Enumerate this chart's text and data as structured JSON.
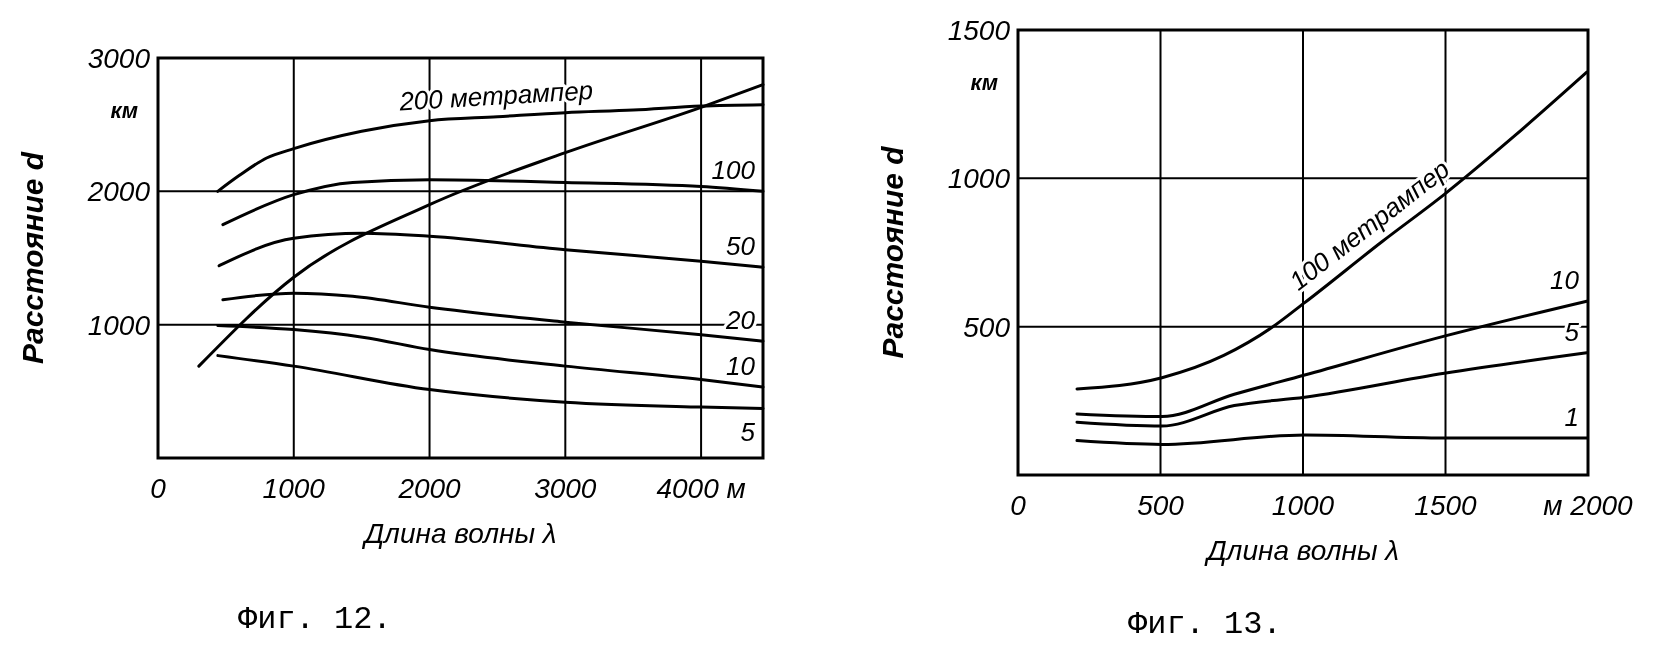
{
  "chart_data": [
    {
      "type": "line",
      "title": "Фиг. 12.",
      "xlabel": "Длина волны λ",
      "ylabel": "Расстояние d",
      "annotations": [
        "км"
      ],
      "xlim": [
        0,
        4456
      ],
      "ylim": [
        0,
        3000
      ],
      "xticks": [
        0,
        1000,
        2000,
        3000,
        {
          "value": 4000,
          "label": "4000 м"
        }
      ],
      "yticks": [
        1000,
        2000,
        3000
      ],
      "grid": true,
      "series": [
        {
          "name": "200 метрампер",
          "color": "#000000",
          "x": [
            440,
            600,
            800,
            1000,
            1500,
            2000,
            2500,
            3000,
            3500,
            4000,
            4456
          ],
          "values": [
            2000,
            2120,
            2250,
            2320,
            2450,
            2530,
            2560,
            2590,
            2610,
            2640,
            2650
          ]
        },
        {
          "color": "#000000",
          "x": [
            301,
            1000,
            2000,
            3000,
            4000,
            4456
          ],
          "values": [
            689,
            1356,
            1900,
            2290,
            2630,
            2800
          ]
        },
        {
          "name": "100",
          "color": "#000000",
          "x": [
            478,
            1000,
            1434,
            2000,
            3000,
            4000,
            4456
          ],
          "values": [
            1750,
            1975,
            2067,
            2086,
            2067,
            2037,
            2000
          ]
        },
        {
          "name": "50",
          "color": "#000000",
          "x": [
            450,
            1000,
            1507,
            2000,
            3000,
            4000,
            4456
          ],
          "values": [
            1442,
            1648,
            1685,
            1663,
            1562,
            1476,
            1431
          ]
        },
        {
          "name": "20",
          "color": "#000000",
          "x": [
            478,
            1000,
            1434,
            2000,
            3000,
            4000,
            4456
          ],
          "values": [
            1187,
            1236,
            1213,
            1131,
            1019,
            925,
            876
          ]
        },
        {
          "name": "10",
          "color": "#000000",
          "x": [
            441,
            1000,
            1507,
            2000,
            3000,
            4000,
            4456
          ],
          "values": [
            993,
            963,
            906,
            813,
            689,
            588,
            532
          ]
        },
        {
          "name": "5",
          "color": "#000000",
          "x": [
            441,
            1000,
            2000,
            3000,
            4000,
            4456
          ],
          "values": [
            768,
            689,
            513,
            419,
            382,
            371
          ]
        }
      ]
    },
    {
      "type": "line",
      "title": "Фиг. 13.",
      "xlabel": "Длина волны λ",
      "ylabel": "Расстояние d",
      "annotations": [
        "км"
      ],
      "xlim": [
        0,
        2000
      ],
      "ylim": [
        0,
        1500
      ],
      "xticks": [
        0,
        500,
        1000,
        1500,
        {
          "value": 2000,
          "label": "м 2000"
        }
      ],
      "yticks": [
        500,
        1000,
        1500
      ],
      "grid": true,
      "series": [
        {
          "name": "100 метрампер",
          "color": "#000000",
          "x": [
            207,
            505,
            722,
            889,
            1006,
            1278,
            1496,
            1741,
            1996
          ],
          "values": [
            290,
            328,
            403,
            496,
            581,
            787,
            946,
            1142,
            1358
          ]
        },
        {
          "name": "10",
          "color": "#000000",
          "x": [
            207,
            505,
            759,
            1006,
            1496,
            1996
          ],
          "values": [
            206,
            197,
            272,
            337,
            468,
            586
          ]
        },
        {
          "name": "5",
          "color": "#000000",
          "x": [
            207,
            505,
            759,
            1006,
            1496,
            1996
          ],
          "values": [
            178,
            165,
            234,
            262,
            343,
            412
          ]
        },
        {
          "name": "1",
          "color": "#000000",
          "x": [
            207,
            505,
            1006,
            1496,
            1996
          ],
          "values": [
            116,
            103,
            135,
            125,
            125
          ]
        }
      ]
    }
  ]
}
